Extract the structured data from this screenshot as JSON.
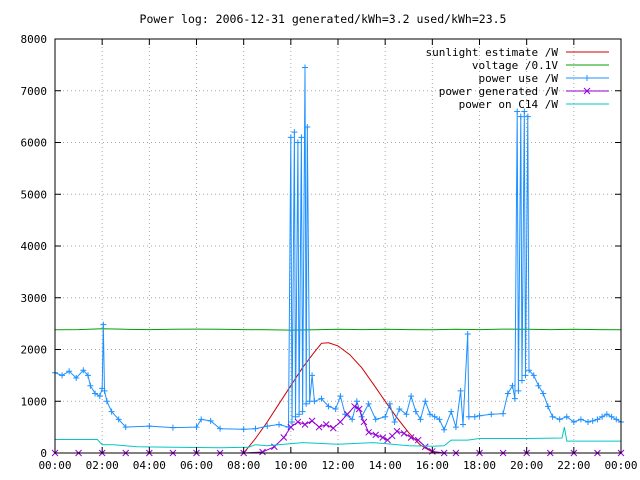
{
  "chart_data": {
    "type": "line",
    "title": "Power log: 2006-12-31 generated/kWh=3.2 used/kWh=23.5",
    "xlabel": "",
    "ylabel": "",
    "xlim": [
      0,
      24
    ],
    "ylim": [
      0,
      8000
    ],
    "xticks": [
      "00:00",
      "02:00",
      "04:00",
      "06:00",
      "08:00",
      "10:00",
      "12:00",
      "14:00",
      "16:00",
      "18:00",
      "20:00",
      "22:00",
      "00:00"
    ],
    "yticks": [
      "0",
      "1000",
      "2000",
      "3000",
      "4000",
      "5000",
      "6000",
      "7000",
      "8000"
    ],
    "grid": true,
    "legend_position": "top-right",
    "series": [
      {
        "name": "sunlight estimate /W",
        "color": "#cc0000",
        "marker": "none",
        "points": [
          [
            8.0,
            0
          ],
          [
            8.5,
            280
          ],
          [
            9.0,
            600
          ],
          [
            9.5,
            950
          ],
          [
            10.0,
            1300
          ],
          [
            10.5,
            1650
          ],
          [
            11.0,
            1950
          ],
          [
            11.3,
            2120
          ],
          [
            11.6,
            2130
          ],
          [
            12.0,
            2070
          ],
          [
            12.5,
            1900
          ],
          [
            13.0,
            1650
          ],
          [
            13.5,
            1330
          ],
          [
            14.0,
            1000
          ],
          [
            14.5,
            680
          ],
          [
            15.0,
            390
          ],
          [
            15.5,
            150
          ],
          [
            16.0,
            20
          ],
          [
            16.2,
            0
          ]
        ]
      },
      {
        "name": "voltage /0.1V",
        "color": "#00a000",
        "marker": "none",
        "points": [
          [
            0.0,
            2380
          ],
          [
            1.0,
            2385
          ],
          [
            2.0,
            2400
          ],
          [
            3.0,
            2390
          ],
          [
            4.0,
            2385
          ],
          [
            5.0,
            2390
          ],
          [
            6.0,
            2395
          ],
          [
            7.0,
            2390
          ],
          [
            8.0,
            2385
          ],
          [
            9.0,
            2380
          ],
          [
            10.0,
            2375
          ],
          [
            11.0,
            2380
          ],
          [
            12.0,
            2390
          ],
          [
            13.0,
            2385
          ],
          [
            14.0,
            2390
          ],
          [
            15.0,
            2385
          ],
          [
            16.0,
            2380
          ],
          [
            17.0,
            2390
          ],
          [
            18.0,
            2385
          ],
          [
            19.0,
            2395
          ],
          [
            20.0,
            2390
          ],
          [
            21.0,
            2385
          ],
          [
            22.0,
            2390
          ],
          [
            23.0,
            2385
          ],
          [
            24.0,
            2380
          ]
        ]
      },
      {
        "name": "power use /W",
        "color": "#1e90ff",
        "marker": "plus",
        "points": [
          [
            0.0,
            1550
          ],
          [
            0.3,
            1500
          ],
          [
            0.6,
            1580
          ],
          [
            0.9,
            1450
          ],
          [
            1.2,
            1600
          ],
          [
            1.4,
            1500
          ],
          [
            1.5,
            1300
          ],
          [
            1.7,
            1150
          ],
          [
            1.9,
            1100
          ],
          [
            2.0,
            1250
          ],
          [
            2.05,
            2480
          ],
          [
            2.1,
            1200
          ],
          [
            2.2,
            1000
          ],
          [
            2.4,
            800
          ],
          [
            2.7,
            650
          ],
          [
            3.0,
            500
          ],
          [
            4.0,
            520
          ],
          [
            5.0,
            490
          ],
          [
            6.0,
            500
          ],
          [
            6.2,
            650
          ],
          [
            6.6,
            620
          ],
          [
            7.0,
            470
          ],
          [
            8.0,
            460
          ],
          [
            8.5,
            470
          ],
          [
            9.0,
            520
          ],
          [
            9.5,
            550
          ],
          [
            9.9,
            500
          ],
          [
            10.0,
            6100
          ],
          [
            10.05,
            600
          ],
          [
            10.15,
            6200
          ],
          [
            10.2,
            700
          ],
          [
            10.3,
            6000
          ],
          [
            10.35,
            750
          ],
          [
            10.45,
            6100
          ],
          [
            10.5,
            800
          ],
          [
            10.6,
            7450
          ],
          [
            10.65,
            950
          ],
          [
            10.7,
            6300
          ],
          [
            10.8,
            1000
          ],
          [
            10.9,
            1500
          ],
          [
            11.0,
            1000
          ],
          [
            11.3,
            1050
          ],
          [
            11.6,
            900
          ],
          [
            11.9,
            850
          ],
          [
            12.1,
            1100
          ],
          [
            12.3,
            750
          ],
          [
            12.6,
            650
          ],
          [
            12.8,
            1000
          ],
          [
            13.0,
            700
          ],
          [
            13.3,
            950
          ],
          [
            13.6,
            650
          ],
          [
            14.0,
            700
          ],
          [
            14.2,
            950
          ],
          [
            14.4,
            600
          ],
          [
            14.6,
            850
          ],
          [
            14.9,
            750
          ],
          [
            15.1,
            1100
          ],
          [
            15.3,
            800
          ],
          [
            15.5,
            650
          ],
          [
            15.7,
            1000
          ],
          [
            15.9,
            750
          ],
          [
            16.1,
            700
          ],
          [
            16.3,
            650
          ],
          [
            16.5,
            450
          ],
          [
            16.8,
            800
          ],
          [
            17.0,
            500
          ],
          [
            17.2,
            1200
          ],
          [
            17.3,
            550
          ],
          [
            17.5,
            2300
          ],
          [
            17.55,
            700
          ],
          [
            17.8,
            700
          ],
          [
            18.0,
            720
          ],
          [
            18.5,
            750
          ],
          [
            19.0,
            760
          ],
          [
            19.2,
            1150
          ],
          [
            19.4,
            1300
          ],
          [
            19.5,
            1050
          ],
          [
            19.6,
            6600
          ],
          [
            19.65,
            1200
          ],
          [
            19.75,
            6500
          ],
          [
            19.8,
            1400
          ],
          [
            19.9,
            6600
          ],
          [
            19.95,
            1500
          ],
          [
            20.05,
            6500
          ],
          [
            20.1,
            1600
          ],
          [
            20.3,
            1500
          ],
          [
            20.5,
            1300
          ],
          [
            20.7,
            1150
          ],
          [
            20.9,
            900
          ],
          [
            21.1,
            700
          ],
          [
            21.4,
            650
          ],
          [
            21.7,
            700
          ],
          [
            22.0,
            600
          ],
          [
            22.3,
            650
          ],
          [
            22.6,
            600
          ],
          [
            22.8,
            620
          ],
          [
            23.0,
            650
          ],
          [
            23.2,
            700
          ],
          [
            23.4,
            750
          ],
          [
            23.6,
            700
          ],
          [
            23.8,
            650
          ],
          [
            24.0,
            600
          ]
        ]
      },
      {
        "name": "power generated /W",
        "color": "#9400d3",
        "marker": "cross",
        "points": [
          [
            0.0,
            0
          ],
          [
            1.0,
            0
          ],
          [
            2.0,
            0
          ],
          [
            3.0,
            0
          ],
          [
            4.0,
            0
          ],
          [
            5.0,
            0
          ],
          [
            6.0,
            0
          ],
          [
            7.0,
            0
          ],
          [
            8.0,
            0
          ],
          [
            8.8,
            20
          ],
          [
            9.3,
            120
          ],
          [
            9.7,
            300
          ],
          [
            10.0,
            500
          ],
          [
            10.3,
            600
          ],
          [
            10.6,
            550
          ],
          [
            10.9,
            620
          ],
          [
            11.2,
            500
          ],
          [
            11.5,
            550
          ],
          [
            11.8,
            480
          ],
          [
            12.1,
            600
          ],
          [
            12.4,
            750
          ],
          [
            12.7,
            900
          ],
          [
            12.9,
            850
          ],
          [
            13.1,
            600
          ],
          [
            13.3,
            400
          ],
          [
            13.6,
            350
          ],
          [
            13.9,
            300
          ],
          [
            14.1,
            250
          ],
          [
            14.3,
            330
          ],
          [
            14.5,
            420
          ],
          [
            14.8,
            380
          ],
          [
            15.1,
            300
          ],
          [
            15.4,
            250
          ],
          [
            15.7,
            120
          ],
          [
            16.0,
            30
          ],
          [
            16.5,
            0
          ],
          [
            17.0,
            0
          ],
          [
            18.0,
            0
          ],
          [
            19.0,
            0
          ],
          [
            20.0,
            0
          ],
          [
            21.0,
            0
          ],
          [
            22.0,
            0
          ],
          [
            23.0,
            0
          ],
          [
            24.0,
            0
          ]
        ]
      },
      {
        "name": "power on C14 /W",
        "color": "#00c8c8",
        "marker": "none",
        "points": [
          [
            0.0,
            260
          ],
          [
            1.0,
            260
          ],
          [
            1.8,
            260
          ],
          [
            2.0,
            160
          ],
          [
            2.5,
            160
          ],
          [
            3.5,
            120
          ],
          [
            5.0,
            110
          ],
          [
            7.0,
            100
          ],
          [
            8.2,
            110
          ],
          [
            8.5,
            160
          ],
          [
            9.0,
            140
          ],
          [
            10.5,
            200
          ],
          [
            12.0,
            170
          ],
          [
            13.5,
            200
          ],
          [
            15.0,
            140
          ],
          [
            16.0,
            130
          ],
          [
            16.5,
            140
          ],
          [
            16.8,
            250
          ],
          [
            17.5,
            250
          ],
          [
            18.0,
            280
          ],
          [
            18.8,
            280
          ],
          [
            19.0,
            280
          ],
          [
            20.0,
            280
          ],
          [
            21.5,
            290
          ],
          [
            21.6,
            500
          ],
          [
            21.7,
            230
          ],
          [
            23.0,
            230
          ],
          [
            24.0,
            230
          ]
        ]
      }
    ]
  }
}
